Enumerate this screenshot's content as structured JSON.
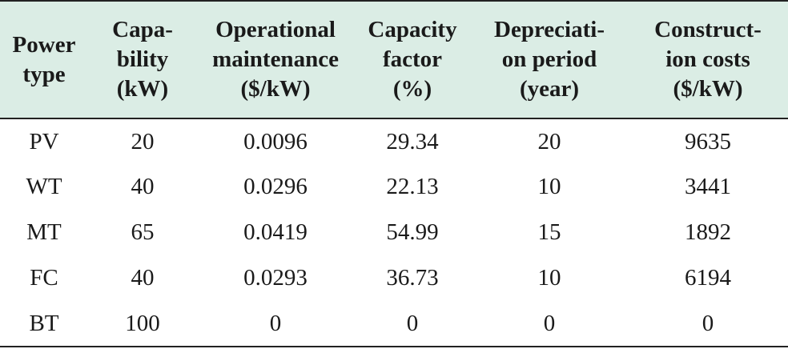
{
  "table": {
    "headers": [
      [
        "Power",
        "type"
      ],
      [
        "Capa-",
        "bility",
        "(kW)"
      ],
      [
        "Operational",
        "maintenance",
        "($/kW)"
      ],
      [
        "Capacity",
        "factor",
        "(%)"
      ],
      [
        "Depreciati-",
        "on period",
        "(year)"
      ],
      [
        "Construct-",
        "ion costs",
        "($/kW)"
      ]
    ],
    "rows": [
      [
        "PV",
        "20",
        "0.0096",
        "29.34",
        "20",
        "9635"
      ],
      [
        "WT",
        "40",
        "0.0296",
        "22.13",
        "10",
        "3441"
      ],
      [
        "MT",
        "65",
        "0.0419",
        "54.99",
        "15",
        "1892"
      ],
      [
        "FC",
        "40",
        "0.0293",
        "36.73",
        "10",
        "6194"
      ],
      [
        "BT",
        "100",
        "0",
        "0",
        "0",
        "0"
      ]
    ],
    "header_background": "#dbede5",
    "rule_color": "#222222"
  }
}
